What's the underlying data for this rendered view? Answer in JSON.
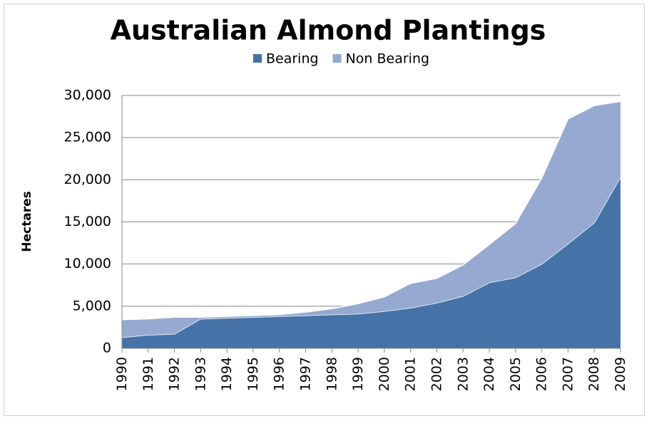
{
  "chart_data": {
    "type": "stacked_area",
    "title": "Australian Almond Plantings",
    "y_label": "Hectares",
    "categories": [
      "1990",
      "1991",
      "1992",
      "1993",
      "1994",
      "1995",
      "1996",
      "1997",
      "1998",
      "1999",
      "2000",
      "2001",
      "2002",
      "2003",
      "2004",
      "2005",
      "2006",
      "2007",
      "2008",
      "2009"
    ],
    "series": [
      {
        "name": "Bearing",
        "color": "#4572a7",
        "values": [
          1300,
          1600,
          1700,
          3500,
          3600,
          3700,
          3800,
          3900,
          4000,
          4100,
          4400,
          4800,
          5400,
          6200,
          7800,
          8400,
          10000,
          12400,
          14900,
          20300
        ]
      },
      {
        "name": "Non Bearing",
        "color": "#95a9d1",
        "values": [
          2100,
          1900,
          2000,
          200,
          200,
          200,
          200,
          400,
          700,
          1200,
          1700,
          2900,
          2900,
          3700,
          4500,
          6400,
          10200,
          14800,
          13900,
          9000
        ]
      }
    ],
    "ylim": [
      0,
      30000
    ],
    "yticks": [
      0,
      {
        "value": 5000,
        "label": "5,000"
      },
      {
        "value": 10000,
        "label": "10,000"
      },
      {
        "value": 15000,
        "label": "15,000"
      },
      {
        "value": 20000,
        "label": "20,000"
      },
      {
        "value": 25000,
        "label": "25,000"
      },
      {
        "value": 30000,
        "label": "30,000"
      }
    ],
    "grid": true,
    "legend": "top"
  }
}
